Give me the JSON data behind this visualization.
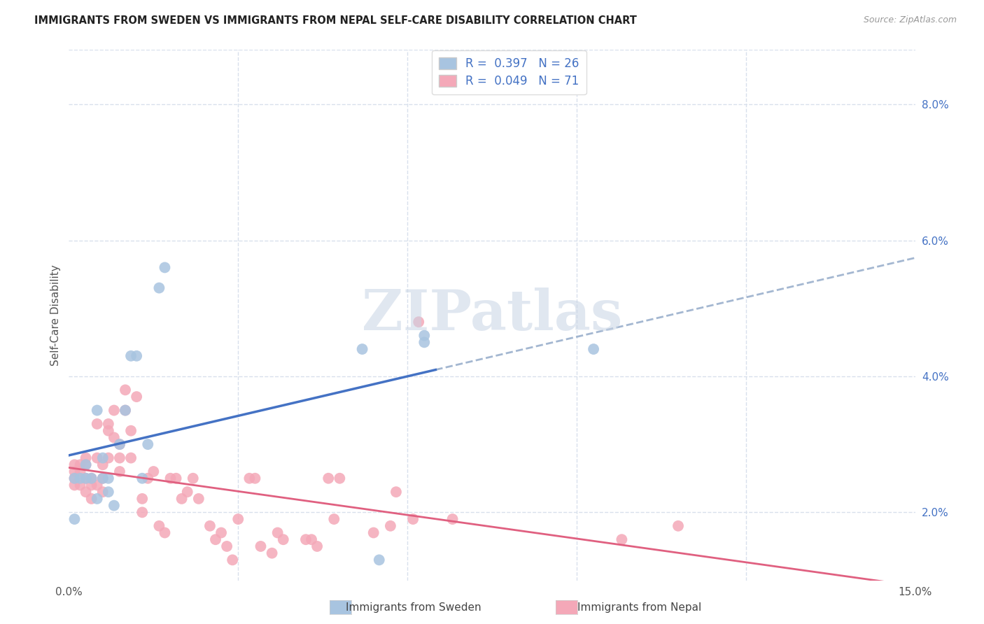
{
  "title": "IMMIGRANTS FROM SWEDEN VS IMMIGRANTS FROM NEPAL SELF-CARE DISABILITY CORRELATION CHART",
  "source": "Source: ZipAtlas.com",
  "ylabel": "Self-Care Disability",
  "xlim": [
    0.0,
    0.15
  ],
  "ylim": [
    0.01,
    0.088
  ],
  "yticks": [
    0.02,
    0.04,
    0.06,
    0.08
  ],
  "xticks": [
    0.0,
    0.03,
    0.06,
    0.09,
    0.12,
    0.15
  ],
  "legend_labels_1": "R =  0.397   N = 26",
  "legend_labels_2": "R =  0.049   N = 71",
  "sweden_color": "#a8c4e0",
  "nepal_color": "#f4a8b8",
  "sweden_line_color": "#4472c4",
  "nepal_line_color": "#e06080",
  "dashed_line_color": "#9ab0cc",
  "background_color": "#ffffff",
  "grid_color": "#d8e0ec",
  "watermark_text": "ZIPatlas",
  "bottom_legend_sweden": "Immigrants from Sweden",
  "bottom_legend_nepal": "Immigrants from Nepal",
  "sweden_x": [
    0.001,
    0.001,
    0.002,
    0.003,
    0.004,
    0.005,
    0.005,
    0.006,
    0.006,
    0.007,
    0.007,
    0.008,
    0.009,
    0.01,
    0.011,
    0.012,
    0.013,
    0.014,
    0.016,
    0.017,
    0.052,
    0.055,
    0.063,
    0.063,
    0.093,
    0.003
  ],
  "sweden_y": [
    0.025,
    0.019,
    0.025,
    0.027,
    0.025,
    0.035,
    0.022,
    0.028,
    0.025,
    0.025,
    0.023,
    0.021,
    0.03,
    0.035,
    0.043,
    0.043,
    0.025,
    0.03,
    0.053,
    0.056,
    0.044,
    0.013,
    0.045,
    0.046,
    0.044,
    0.025
  ],
  "nepal_x": [
    0.001,
    0.001,
    0.001,
    0.001,
    0.002,
    0.002,
    0.002,
    0.003,
    0.003,
    0.003,
    0.003,
    0.004,
    0.004,
    0.004,
    0.005,
    0.005,
    0.005,
    0.006,
    0.006,
    0.006,
    0.007,
    0.007,
    0.007,
    0.008,
    0.008,
    0.009,
    0.009,
    0.009,
    0.01,
    0.01,
    0.011,
    0.011,
    0.012,
    0.013,
    0.013,
    0.014,
    0.015,
    0.016,
    0.017,
    0.018,
    0.019,
    0.02,
    0.021,
    0.022,
    0.023,
    0.025,
    0.026,
    0.027,
    0.028,
    0.029,
    0.03,
    0.032,
    0.033,
    0.034,
    0.036,
    0.037,
    0.038,
    0.042,
    0.043,
    0.044,
    0.046,
    0.047,
    0.048,
    0.054,
    0.057,
    0.058,
    0.061,
    0.062,
    0.068,
    0.098,
    0.108
  ],
  "nepal_y": [
    0.027,
    0.026,
    0.025,
    0.024,
    0.027,
    0.026,
    0.024,
    0.028,
    0.027,
    0.025,
    0.023,
    0.025,
    0.024,
    0.022,
    0.033,
    0.028,
    0.024,
    0.027,
    0.025,
    0.023,
    0.033,
    0.032,
    0.028,
    0.035,
    0.031,
    0.03,
    0.028,
    0.026,
    0.038,
    0.035,
    0.032,
    0.028,
    0.037,
    0.022,
    0.02,
    0.025,
    0.026,
    0.018,
    0.017,
    0.025,
    0.025,
    0.022,
    0.023,
    0.025,
    0.022,
    0.018,
    0.016,
    0.017,
    0.015,
    0.013,
    0.019,
    0.025,
    0.025,
    0.015,
    0.014,
    0.017,
    0.016,
    0.016,
    0.016,
    0.015,
    0.025,
    0.019,
    0.025,
    0.017,
    0.018,
    0.023,
    0.019,
    0.048,
    0.019,
    0.016,
    0.018
  ]
}
